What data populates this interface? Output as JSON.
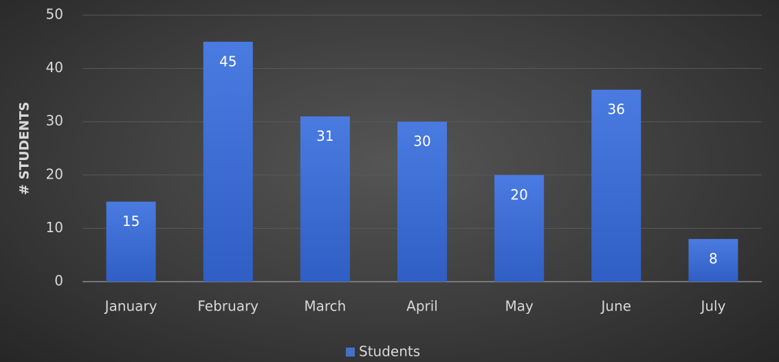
{
  "chart_data": {
    "type": "bar",
    "y_label": "# STUDENTS",
    "categories": [
      "January",
      "February",
      "March",
      "April",
      "May",
      "June",
      "July"
    ],
    "series": [
      {
        "name": "Students",
        "color": "#4472c4",
        "values": [
          15,
          45,
          31,
          30,
          20,
          36,
          8
        ]
      }
    ],
    "ylim": [
      0,
      50
    ],
    "yticks": [
      0,
      10,
      20,
      30,
      40,
      50
    ],
    "grid": true,
    "legend": "bottom"
  }
}
